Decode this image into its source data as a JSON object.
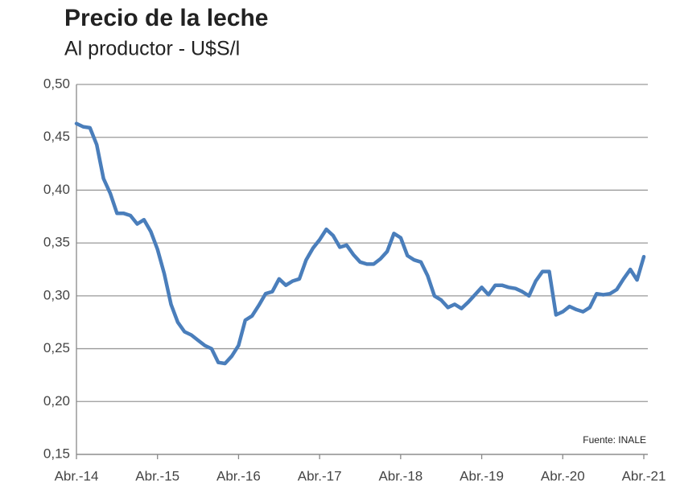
{
  "chart_data": {
    "type": "line",
    "title": "Precio de la leche",
    "subtitle": "Al productor - U$S/l",
    "annotation": "Fuente: INALE",
    "categories": [
      "Abr.-14",
      null,
      null,
      null,
      null,
      null,
      null,
      null,
      null,
      null,
      null,
      null,
      "Abr.-15",
      null,
      null,
      null,
      null,
      null,
      null,
      null,
      null,
      null,
      null,
      null,
      "Abr.-16",
      null,
      null,
      null,
      null,
      null,
      null,
      null,
      null,
      null,
      null,
      null,
      "Abr.-17",
      null,
      null,
      null,
      null,
      null,
      null,
      null,
      null,
      null,
      null,
      null,
      "Abr.-18",
      null,
      null,
      null,
      null,
      null,
      null,
      null,
      null,
      null,
      null,
      null,
      "Abr.-19",
      null,
      null,
      null,
      null,
      null,
      null,
      null,
      null,
      null,
      null,
      null,
      "Abr.-20",
      null,
      null,
      null,
      null,
      null,
      null,
      null,
      null,
      null,
      null,
      null,
      "Abr.-21"
    ],
    "series": [
      {
        "color": "#4a7ebb",
        "values": [
          0.463,
          0.46,
          0.459,
          0.443,
          0.411,
          0.397,
          0.378,
          0.378,
          0.376,
          0.368,
          0.372,
          0.361,
          0.344,
          0.321,
          0.292,
          0.275,
          0.266,
          0.263,
          0.258,
          0.253,
          0.25,
          0.237,
          0.236,
          0.243,
          0.253,
          0.277,
          0.281,
          0.291,
          0.302,
          0.304,
          0.316,
          0.31,
          0.314,
          0.316,
          0.334,
          0.345,
          0.353,
          0.363,
          0.357,
          0.346,
          0.348,
          0.339,
          0.332,
          0.33,
          0.33,
          0.335,
          0.342,
          0.359,
          0.355,
          0.338,
          0.334,
          0.332,
          0.319,
          0.3,
          0.296,
          0.289,
          0.292,
          0.288,
          0.294,
          0.301,
          0.308,
          0.301,
          0.31,
          0.31,
          0.308,
          0.307,
          0.304,
          0.3,
          0.314,
          0.323,
          0.323,
          0.282,
          0.285,
          0.29,
          0.287,
          0.285,
          0.289,
          0.302,
          0.301,
          0.302,
          0.306,
          0.316,
          0.325,
          0.315,
          0.337
        ]
      }
    ],
    "ylim": [
      0.15,
      0.5
    ],
    "yticks": [
      {
        "value": 0.15,
        "label": "0,15"
      },
      {
        "value": 0.2,
        "label": "0,20"
      },
      {
        "value": 0.25,
        "label": "0,25"
      },
      {
        "value": 0.3,
        "label": "0,30"
      },
      {
        "value": 0.35,
        "label": "0,35"
      },
      {
        "value": 0.4,
        "label": "0,40"
      },
      {
        "value": 0.45,
        "label": "0,45"
      },
      {
        "value": 0.5,
        "label": "0,50"
      }
    ],
    "grid": true
  }
}
